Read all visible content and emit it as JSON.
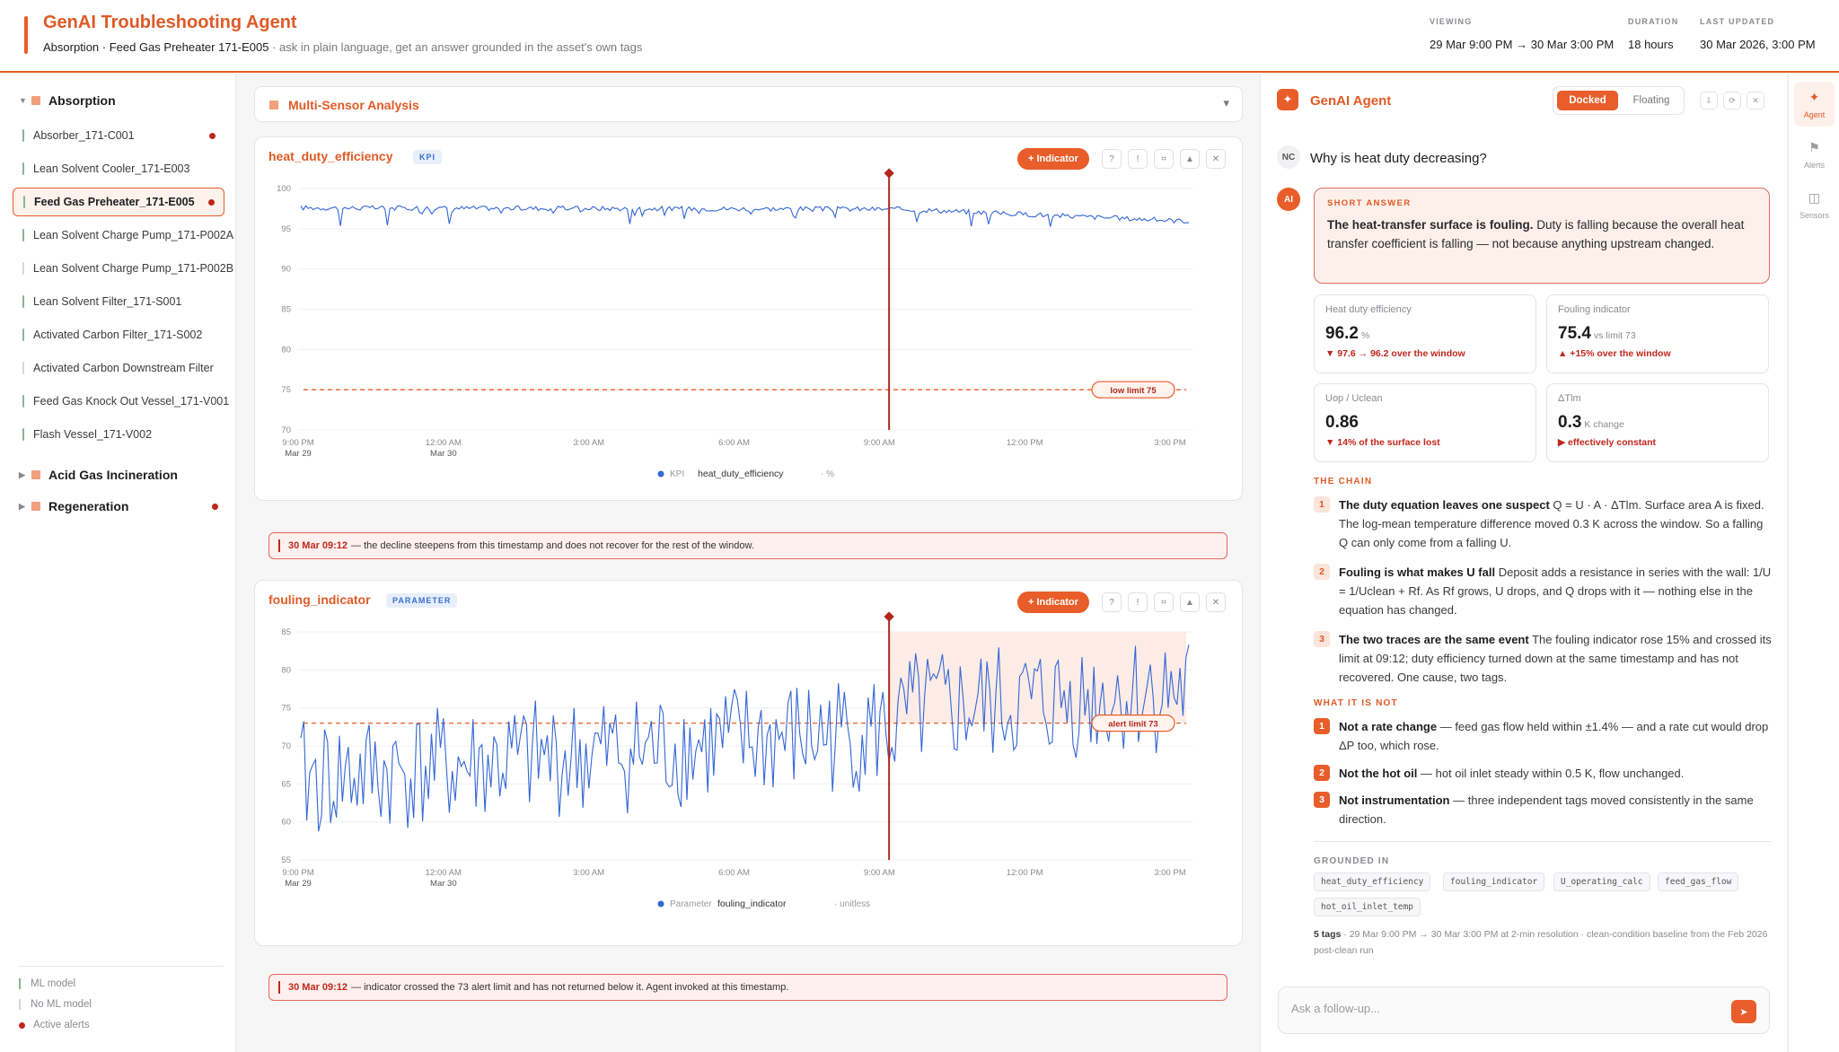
{
  "header": {
    "title": "GenAI Troubleshooting Agent",
    "subtitle_bold": "Absorption · Feed Gas Preheater 171-E005",
    "subtitle_muted": " · ask in plain language, get an answer grounded in the asset's own tags",
    "viewing_label": "VIEWING",
    "viewing_value": "29 Mar 9:00 PM → 30 Mar 3:00 PM",
    "duration_label": "DURATION",
    "duration_value": "18 hours",
    "updated_label": "LAST UPDATED",
    "updated_value": "30 Mar 2026, 3:00 PM"
  },
  "sidebar": {
    "groups": [
      {
        "label": "Absorption",
        "caret": "▼"
      },
      {
        "label": "Acid Gas Incineration",
        "caret": "▶"
      },
      {
        "label": "Regeneration",
        "caret": "▶"
      }
    ],
    "items": [
      {
        "label": "Absorber_171-C001"
      },
      {
        "label": "Lean Solvent Cooler_171-E003"
      },
      {
        "label": "Feed Gas Preheater_171-E005"
      },
      {
        "label": "Lean Solvent Charge Pump_171-P002A"
      },
      {
        "label": "Lean Solvent Charge Pump_171-P002B"
      },
      {
        "label": "Lean Solvent Filter_171-S001"
      },
      {
        "label": "Activated Carbon Filter_171-S002"
      },
      {
        "label": "Activated Carbon Downstream Filter"
      },
      {
        "label": "Feed Gas Knock Out Vessel_171-V001"
      },
      {
        "label": "Flash Vessel_171-V002"
      }
    ],
    "legend": {
      "ml": "ML model",
      "noml": "No ML model",
      "alerts": "Active alerts"
    }
  },
  "main": {
    "section_title": "Multi-Sensor Analysis",
    "chevron": "▾",
    "indicator_btn": "+ Indicator",
    "tool_icons": [
      "?",
      "!",
      "⌗",
      "▲",
      "✕"
    ],
    "chart1": {
      "title": "heat_duty_efficiency",
      "badge": "KPI",
      "legend_prefix": "KPI",
      "legend_name": "heat_duty_efficiency",
      "legend_unit": "· %",
      "limit_label": "low limit 75",
      "note_time": "30 Mar 09:12",
      "note_text": "— the decline steepens from this timestamp and does not recover for the rest of the window."
    },
    "chart2": {
      "title": "fouling_indicator",
      "badge": "PARAMETER",
      "legend_prefix": "Parameter",
      "legend_name": "fouling_indicator",
      "legend_unit": "· unitless",
      "limit_label": "alert limit 73",
      "note_time": "30 Mar 09:12",
      "note_text": "— indicator crossed the 73 alert limit and has not returned below it. Agent invoked at this timestamp."
    }
  },
  "chart_data": [
    {
      "type": "line",
      "title": "heat_duty_efficiency",
      "ylim": [
        70,
        100
      ],
      "yticks": [
        70,
        75,
        80,
        85,
        90,
        95,
        100
      ],
      "xticks": [
        "9:00 PM",
        "12:00 AM",
        "3:00 AM",
        "6:00 AM",
        "9:00 AM",
        "12:00 PM",
        "3:00 PM"
      ],
      "xsub": [
        "Mar 29",
        "Mar 30",
        "",
        "",
        "",
        "",
        ""
      ],
      "series": [
        {
          "name": "heat_duty_efficiency",
          "start": 97.6,
          "end": 96.2,
          "noise": 0.6
        }
      ],
      "threshold": 75,
      "event_x": "09:12",
      "color": "#3366d6"
    },
    {
      "type": "line",
      "title": "fouling_indicator",
      "ylim": [
        55,
        85
      ],
      "yticks": [
        55,
        60,
        65,
        70,
        75,
        80,
        85
      ],
      "xticks": [
        "9:00 PM",
        "12:00 AM",
        "3:00 AM",
        "6:00 AM",
        "9:00 AM",
        "12:00 PM",
        "3:00 PM"
      ],
      "xsub": [
        "Mar 29",
        "Mar 30",
        "",
        "",
        "",
        "",
        ""
      ],
      "series": [
        {
          "name": "fouling_indicator",
          "start": 65.5,
          "end": 75.4,
          "noise": 8
        }
      ],
      "threshold": 73,
      "event_x": "09:12",
      "color": "#3366d6"
    }
  ],
  "panel": {
    "title": "GenAI Agent",
    "docked": "Docked",
    "floating": "Floating",
    "btns": [
      "⇩",
      "⟳",
      "✕"
    ],
    "user_avatar": "NC",
    "ai_avatar": "AI",
    "question": "Why is heat duty decreasing?",
    "short_cap": "SHORT ANSWER",
    "short_bold": "The heat-transfer surface is fouling.",
    "short_text": " Duty is falling because the overall heat transfer coefficient is falling — not because anything upstream changed.",
    "kpis": [
      {
        "label": "Heat duty efficiency",
        "value": "96.2",
        "unit": "%",
        "delta": "▼ 97.6 → 96.2 over the window"
      },
      {
        "label": "Fouling indicator",
        "value": "75.4",
        "unit": "vs limit 73",
        "delta": "▲ +15% over the window"
      },
      {
        "label": "Uop / Uclean",
        "value": "0.86",
        "unit": "",
        "delta": "▼ 14% of the surface lost"
      },
      {
        "label": "ΔTlm",
        "value": "0.3",
        "unit": "K change",
        "delta": "▶ effectively constant"
      }
    ],
    "chain_cap": "THE CHAIN",
    "chain": [
      {
        "n": "1",
        "bold": "The duty equation leaves one suspect",
        "text": " Q = U · A · ΔTlm. Surface area A is fixed. The log-mean temperature difference moved 0.3 K across the window. So a falling Q can only come from a falling U."
      },
      {
        "n": "2",
        "bold": "Fouling is what makes U fall",
        "text": " Deposit adds a resistance in series with the wall: 1/U = 1/Uclean + Rf. As Rf grows, U drops, and Q drops with it — nothing else in the equation has changed."
      },
      {
        "n": "3",
        "bold": "The two traces are the same event",
        "text": " The fouling indicator rose 15% and crossed its limit at 09:12; duty efficiency turned down at the same timestamp and has not recovered. One cause, two tags."
      }
    ],
    "not_cap": "WHAT IT IS NOT",
    "not": [
      {
        "n": "1",
        "bold": "Not a rate change",
        "text": " — feed gas flow held within ±1.4% — and a rate cut would drop ΔP too, which rose."
      },
      {
        "n": "2",
        "bold": "Not the hot oil",
        "text": " — hot oil inlet steady within 0.5 K, flow unchanged."
      },
      {
        "n": "3",
        "bold": "Not instrumentation",
        "text": " — three independent tags moved consistently in the same direction."
      }
    ],
    "grounded_cap": "GROUNDED IN",
    "tags": [
      "heat_duty_efficiency",
      "fouling_indicator",
      "U_operating_calc",
      "feed_gas_flow",
      "hot_oil_inlet_temp"
    ],
    "foot_bold": "5 tags",
    "foot_text": " · 29 Mar 9:00 PM → 30 Mar 3:00 PM at 2-min resolution · clean-condition baseline from the Feb 2026 post-clean run",
    "ask_placeholder": "Ask a follow-up...",
    "send": "➤"
  },
  "rail": [
    {
      "icon": "✦",
      "label": "Agent"
    },
    {
      "icon": "⚑",
      "label": "Alerts"
    },
    {
      "icon": "◫",
      "label": "Sensors"
    }
  ]
}
